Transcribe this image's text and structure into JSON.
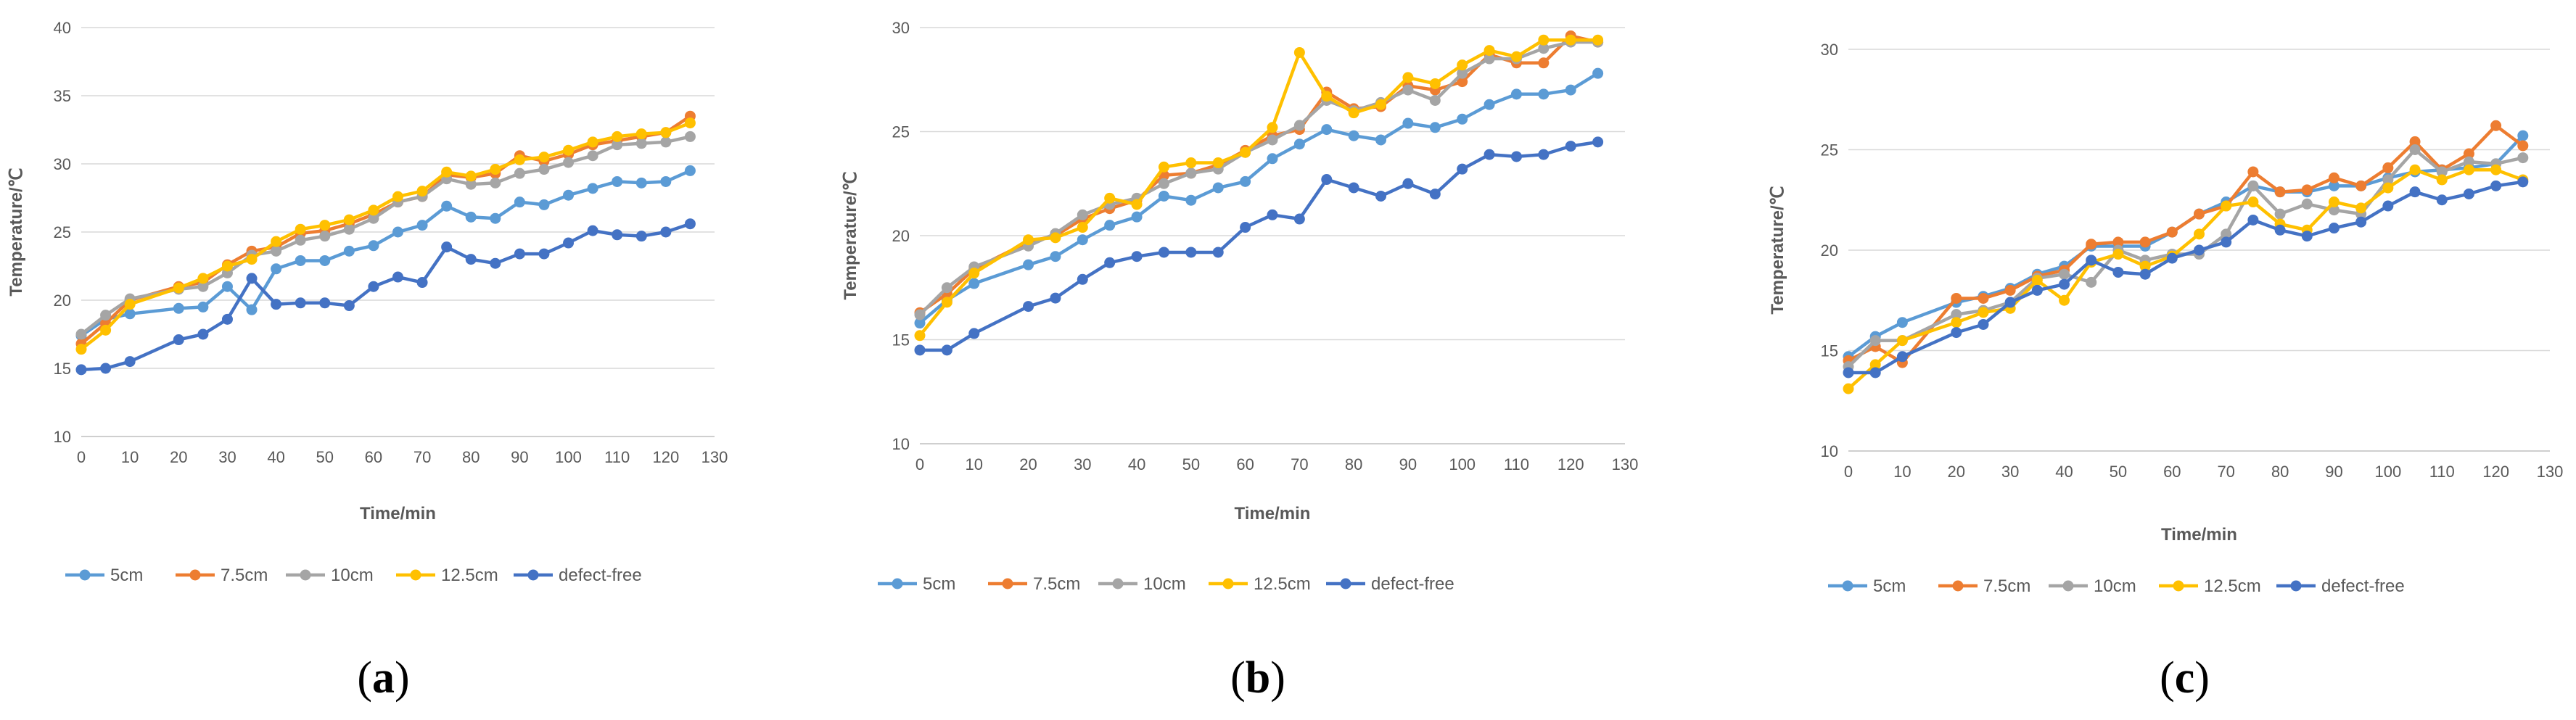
{
  "chart_data": [
    {
      "type": "line",
      "panel_label": "a",
      "xlabel": "Time/min",
      "ylabel": "Temperature/℃",
      "xlim": [
        0,
        130
      ],
      "ylim": [
        10,
        40
      ],
      "xticks": [
        0,
        10,
        20,
        30,
        40,
        50,
        60,
        70,
        80,
        90,
        100,
        110,
        120,
        130
      ],
      "yticks": [
        10,
        15,
        20,
        25,
        30,
        35,
        40
      ],
      "grid": true,
      "legend": "bottom",
      "series": [
        {
          "name": "5cm",
          "color": "#5B9BD5",
          "x": [
            0,
            5,
            10,
            20,
            25,
            30,
            35,
            40,
            45,
            50,
            55,
            60,
            65,
            70,
            75,
            80,
            85,
            90,
            95,
            100,
            105,
            110,
            115,
            120,
            125
          ],
          "y": [
            17.4,
            18.6,
            19.0,
            19.4,
            19.5,
            21.0,
            19.3,
            22.3,
            22.9,
            22.9,
            23.6,
            24.0,
            25.0,
            25.5,
            26.9,
            26.1,
            26.0,
            27.2,
            27.0,
            27.7,
            28.2,
            28.7,
            28.6,
            28.7,
            29.5
          ]
        },
        {
          "name": "7.5cm",
          "color": "#ED7D31",
          "x": [
            0,
            5,
            10,
            20,
            25,
            30,
            35,
            40,
            45,
            50,
            55,
            60,
            65,
            70,
            75,
            80,
            85,
            90,
            95,
            100,
            105,
            110,
            115,
            120,
            125
          ],
          "y": [
            16.8,
            18.3,
            20.0,
            21.0,
            21.3,
            22.6,
            23.6,
            23.9,
            24.9,
            25.1,
            25.6,
            26.3,
            27.2,
            27.6,
            29.2,
            29.0,
            29.3,
            30.6,
            30.2,
            30.7,
            31.4,
            31.7,
            32.0,
            32.3,
            33.5
          ]
        },
        {
          "name": "10cm",
          "color": "#A5A5A5",
          "x": [
            0,
            5,
            10,
            20,
            25,
            30,
            35,
            40,
            45,
            50,
            55,
            60,
            65,
            70,
            75,
            80,
            85,
            90,
            95,
            100,
            105,
            110,
            115,
            120,
            125
          ],
          "y": [
            17.5,
            18.9,
            20.1,
            20.8,
            21.0,
            22.0,
            23.3,
            23.6,
            24.4,
            24.7,
            25.2,
            26.0,
            27.2,
            27.6,
            28.9,
            28.5,
            28.6,
            29.3,
            29.6,
            30.1,
            30.6,
            31.4,
            31.5,
            31.6,
            32.0
          ]
        },
        {
          "name": "12.5cm",
          "color": "#FFC000",
          "x": [
            0,
            5,
            10,
            20,
            25,
            30,
            35,
            40,
            45,
            50,
            55,
            60,
            65,
            70,
            75,
            80,
            85,
            90,
            95,
            100,
            105,
            110,
            115,
            120,
            125
          ],
          "y": [
            16.4,
            17.8,
            19.7,
            20.9,
            21.6,
            22.5,
            23.0,
            24.3,
            25.2,
            25.5,
            25.9,
            26.6,
            27.6,
            28.0,
            29.4,
            29.1,
            29.6,
            30.3,
            30.5,
            31.0,
            31.6,
            32.0,
            32.2,
            32.3,
            33.0
          ]
        },
        {
          "name": "defect-free",
          "color": "#4472C4",
          "x": [
            0,
            5,
            10,
            20,
            25,
            30,
            35,
            40,
            45,
            50,
            55,
            60,
            65,
            70,
            75,
            80,
            85,
            90,
            95,
            100,
            105,
            110,
            115,
            120,
            125
          ],
          "y": [
            14.9,
            15.0,
            15.5,
            17.1,
            17.5,
            18.6,
            21.6,
            19.7,
            19.8,
            19.8,
            19.6,
            21.0,
            21.7,
            21.3,
            23.9,
            23.0,
            22.7,
            23.4,
            23.4,
            24.2,
            25.1,
            24.8,
            24.7,
            25.0,
            25.6
          ]
        }
      ]
    },
    {
      "type": "line",
      "panel_label": "b",
      "xlabel": "Time/min",
      "ylabel": "Temperature/℃",
      "xlim": [
        0,
        130
      ],
      "ylim": [
        10,
        30
      ],
      "xticks": [
        0,
        10,
        20,
        30,
        40,
        50,
        60,
        70,
        80,
        90,
        100,
        110,
        120,
        130
      ],
      "yticks": [
        10,
        15,
        20,
        25,
        30
      ],
      "grid": true,
      "legend": "bottom",
      "series": [
        {
          "name": "5cm",
          "color": "#5B9BD5",
          "x": [
            0,
            5,
            10,
            20,
            25,
            30,
            35,
            40,
            45,
            50,
            55,
            60,
            65,
            70,
            75,
            80,
            85,
            90,
            95,
            100,
            105,
            110,
            115,
            120,
            125
          ],
          "y": [
            15.8,
            16.9,
            17.7,
            18.6,
            19.0,
            19.8,
            20.5,
            20.9,
            21.9,
            21.7,
            22.3,
            22.6,
            23.7,
            24.4,
            25.1,
            24.8,
            24.6,
            25.4,
            25.2,
            25.6,
            26.3,
            26.8,
            26.8,
            27.0,
            27.8
          ]
        },
        {
          "name": "7.5cm",
          "color": "#ED7D31",
          "x": [
            0,
            5,
            10,
            20,
            25,
            30,
            35,
            40,
            45,
            50,
            55,
            60,
            65,
            70,
            75,
            80,
            85,
            90,
            95,
            100,
            105,
            110,
            115,
            120,
            125
          ],
          "y": [
            16.3,
            17.2,
            18.4,
            19.7,
            20.0,
            20.8,
            21.3,
            21.7,
            22.9,
            23.0,
            23.4,
            24.1,
            24.8,
            25.1,
            26.9,
            26.1,
            26.2,
            27.2,
            27.0,
            27.4,
            28.7,
            28.3,
            28.3,
            29.6,
            29.3
          ]
        },
        {
          "name": "10cm",
          "color": "#A5A5A5",
          "x": [
            0,
            5,
            10,
            20,
            25,
            30,
            35,
            40,
            45,
            50,
            55,
            60,
            65,
            70,
            75,
            80,
            85,
            90,
            95,
            100,
            105,
            110,
            115,
            120,
            125
          ],
          "y": [
            16.2,
            17.5,
            18.5,
            19.5,
            20.1,
            21.0,
            21.5,
            21.8,
            22.5,
            23.0,
            23.2,
            24.0,
            24.6,
            25.3,
            26.5,
            26.0,
            26.4,
            27.0,
            26.5,
            27.8,
            28.5,
            28.5,
            29.0,
            29.3,
            29.3
          ]
        },
        {
          "name": "12.5cm",
          "color": "#FFC000",
          "x": [
            0,
            5,
            10,
            20,
            25,
            30,
            35,
            40,
            45,
            50,
            55,
            60,
            65,
            70,
            75,
            80,
            85,
            90,
            95,
            100,
            105,
            110,
            115,
            120,
            125
          ],
          "y": [
            15.2,
            16.8,
            18.2,
            19.8,
            19.9,
            20.4,
            21.8,
            21.5,
            23.3,
            23.5,
            23.5,
            24.0,
            25.2,
            28.8,
            26.7,
            25.9,
            26.3,
            27.6,
            27.3,
            28.2,
            28.9,
            28.6,
            29.4,
            29.4,
            29.4
          ]
        },
        {
          "name": "defect-free",
          "color": "#4472C4",
          "x": [
            0,
            5,
            10,
            20,
            25,
            30,
            35,
            40,
            45,
            50,
            55,
            60,
            65,
            70,
            75,
            80,
            85,
            90,
            95,
            100,
            105,
            110,
            115,
            120,
            125
          ],
          "y": [
            14.5,
            14.5,
            15.3,
            16.6,
            17.0,
            17.9,
            18.7,
            19.0,
            19.2,
            19.2,
            19.2,
            20.4,
            21.0,
            20.8,
            22.7,
            22.3,
            21.9,
            22.5,
            22.0,
            23.2,
            23.9,
            23.8,
            23.9,
            24.3,
            24.5
          ]
        }
      ]
    },
    {
      "type": "line",
      "panel_label": "c",
      "xlabel": "Time/min",
      "ylabel": "Temperature/℃",
      "xlim": [
        0,
        130
      ],
      "ylim": [
        10,
        30
      ],
      "xticks": [
        0,
        10,
        20,
        30,
        40,
        50,
        60,
        70,
        80,
        90,
        100,
        110,
        120,
        130
      ],
      "yticks": [
        10,
        15,
        20,
        25,
        30
      ],
      "grid": true,
      "legend": "bottom",
      "series": [
        {
          "name": "5cm",
          "color": "#5B9BD5",
          "x": [
            0,
            5,
            10,
            20,
            25,
            30,
            35,
            40,
            45,
            50,
            55,
            60,
            65,
            70,
            75,
            80,
            85,
            90,
            95,
            100,
            105,
            110,
            115,
            120,
            125
          ],
          "y": [
            14.7,
            15.7,
            16.4,
            17.4,
            17.7,
            18.1,
            18.8,
            19.2,
            20.2,
            20.2,
            20.2,
            20.9,
            21.8,
            22.4,
            23.2,
            22.9,
            22.9,
            23.2,
            23.2,
            23.6,
            23.9,
            24.0,
            24.1,
            24.3,
            25.7
          ]
        },
        {
          "name": "7.5cm",
          "color": "#ED7D31",
          "x": [
            0,
            5,
            10,
            20,
            25,
            30,
            35,
            40,
            45,
            50,
            55,
            60,
            65,
            70,
            75,
            80,
            85,
            90,
            95,
            100,
            105,
            110,
            115,
            120,
            125
          ],
          "y": [
            14.5,
            15.2,
            14.4,
            17.6,
            17.6,
            18.0,
            18.7,
            19.0,
            20.3,
            20.4,
            20.4,
            20.9,
            21.8,
            22.2,
            23.9,
            22.9,
            23.0,
            23.6,
            23.2,
            24.1,
            25.4,
            24.0,
            24.8,
            26.2,
            25.2
          ]
        },
        {
          "name": "10cm",
          "color": "#A5A5A5",
          "x": [
            0,
            5,
            10,
            20,
            25,
            30,
            35,
            40,
            45,
            50,
            55,
            60,
            65,
            70,
            75,
            80,
            85,
            90,
            95,
            100,
            105,
            110,
            115,
            120,
            125
          ],
          "y": [
            14.2,
            15.5,
            15.5,
            16.8,
            17.0,
            17.4,
            18.6,
            18.8,
            18.4,
            20.0,
            19.5,
            19.8,
            19.8,
            20.8,
            23.2,
            21.8,
            22.3,
            22.0,
            21.8,
            23.5,
            25.0,
            23.9,
            24.4,
            24.3,
            24.6
          ]
        },
        {
          "name": "12.5cm",
          "color": "#FFC000",
          "x": [
            0,
            5,
            10,
            20,
            25,
            30,
            35,
            40,
            45,
            50,
            55,
            60,
            65,
            70,
            75,
            80,
            85,
            90,
            95,
            100,
            105,
            110,
            115,
            120,
            125
          ],
          "y": [
            13.1,
            14.3,
            15.5,
            16.4,
            16.9,
            17.1,
            18.5,
            17.5,
            19.4,
            19.8,
            19.2,
            19.7,
            20.8,
            22.2,
            22.4,
            21.3,
            21.0,
            22.4,
            22.1,
            23.1,
            24.0,
            23.5,
            24.0,
            24.0,
            23.5
          ]
        },
        {
          "name": "defect-free",
          "color": "#4472C4",
          "x": [
            0,
            5,
            10,
            20,
            25,
            30,
            35,
            40,
            45,
            50,
            55,
            60,
            65,
            70,
            75,
            80,
            85,
            90,
            95,
            100,
            105,
            110,
            115,
            120,
            125
          ],
          "y": [
            13.9,
            13.9,
            14.7,
            15.9,
            16.3,
            17.4,
            18.0,
            18.3,
            19.5,
            18.9,
            18.8,
            19.6,
            20.0,
            20.4,
            21.5,
            21.0,
            20.7,
            21.1,
            21.4,
            22.2,
            22.9,
            22.5,
            22.8,
            23.2,
            23.4
          ]
        }
      ]
    }
  ]
}
